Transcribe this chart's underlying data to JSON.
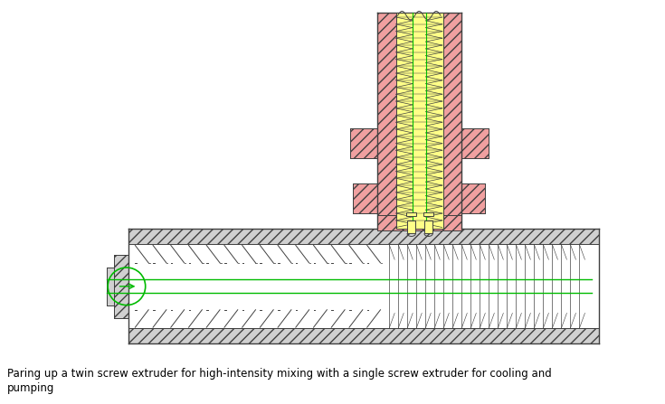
{
  "caption_line1": "Paring up a twin screw extruder for high-intensity mixing with a single screw extruder for cooling and",
  "caption_line2": "pumping",
  "bg_color": "#ffffff",
  "red_fill": "#f0a0a0",
  "gray_fill": "#d0d0d0",
  "gray_dark": "#b0b0b0",
  "outline": "#404040",
  "green": "#00bb00",
  "yellow": "#ffff88",
  "fig_width": 7.35,
  "fig_height": 4.47,
  "dpi": 100
}
